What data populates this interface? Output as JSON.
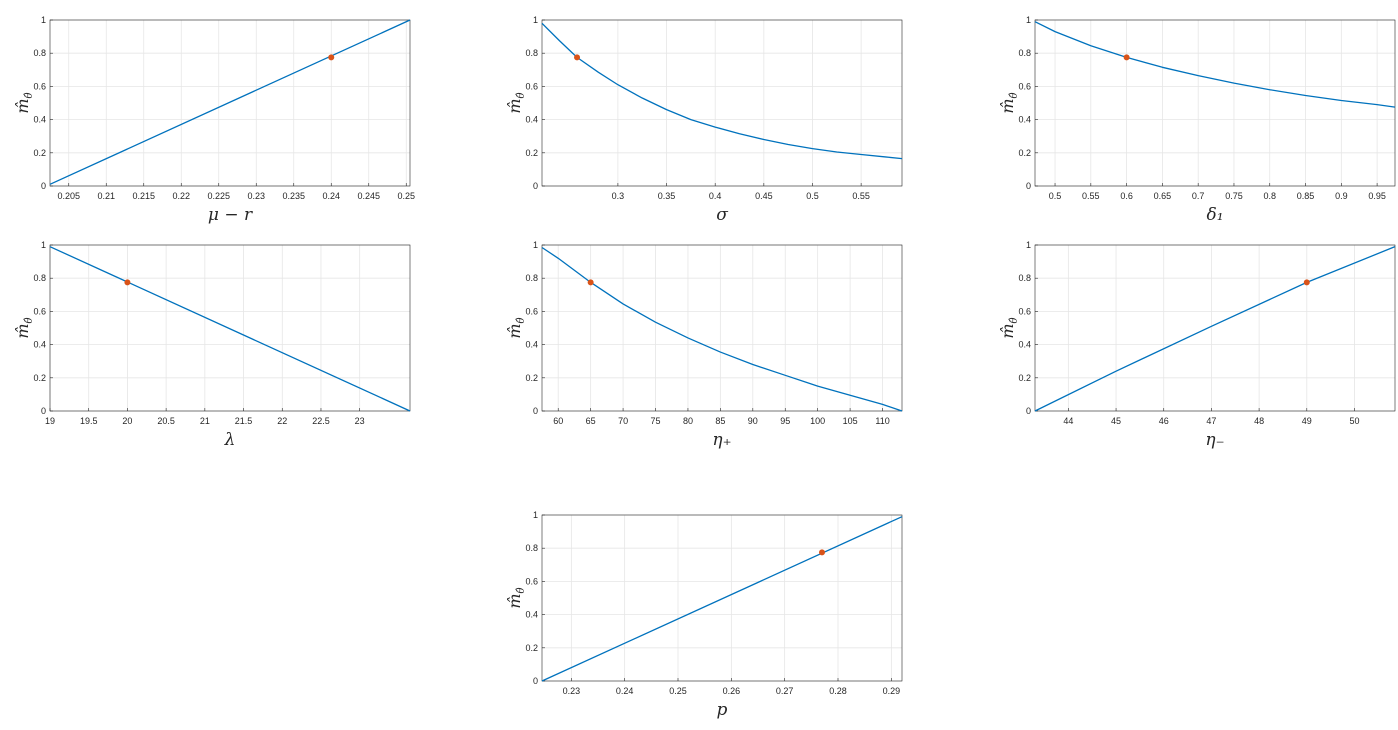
{
  "figure": {
    "ylabel_main": "m̂",
    "ylabel_sub": "θ̂",
    "line_color": "#0072BD",
    "marker_color": "#D95319",
    "axis_color": "#262626",
    "grid_color": "#e6e6e6"
  },
  "chart_data": [
    {
      "type": "line",
      "xlabel": "μ − r",
      "xlim": [
        0.2025,
        0.2505
      ],
      "ylim": [
        0,
        1
      ],
      "xticks": [
        0.205,
        0.21,
        0.215,
        0.22,
        0.225,
        0.23,
        0.235,
        0.24,
        0.245,
        0.25
      ],
      "xticklabels": [
        "0.205",
        "0.21",
        "0.215",
        "0.22",
        "0.225",
        "0.23",
        "0.235",
        "0.24",
        "0.245",
        "0.25"
      ],
      "yticks": [
        0,
        0.2,
        0.4,
        0.6,
        0.8,
        1
      ],
      "yticklabels": [
        "0",
        "0.2",
        "0.4",
        "0.6",
        "0.8",
        "1"
      ],
      "x": [
        0.2025,
        0.2505
      ],
      "y": [
        0.01,
        1.0
      ],
      "marker": {
        "x": 0.24,
        "y": 0.775
      }
    },
    {
      "type": "line",
      "xlabel": "σ",
      "xlim": [
        0.222,
        0.592
      ],
      "ylim": [
        0,
        1
      ],
      "xticks": [
        0.3,
        0.35,
        0.4,
        0.45,
        0.5,
        0.55
      ],
      "xticklabels": [
        "0.3",
        "0.35",
        "0.4",
        "0.45",
        "0.5",
        "0.55"
      ],
      "yticks": [
        0,
        0.2,
        0.4,
        0.6,
        0.8,
        1
      ],
      "yticklabels": [
        "0",
        "0.2",
        "0.4",
        "0.6",
        "0.8",
        "1"
      ],
      "x": [
        0.222,
        0.24,
        0.258,
        0.28,
        0.3,
        0.325,
        0.35,
        0.375,
        0.4,
        0.425,
        0.45,
        0.475,
        0.5,
        0.525,
        0.55,
        0.575,
        0.592
      ],
      "y": [
        0.98,
        0.875,
        0.775,
        0.685,
        0.61,
        0.53,
        0.46,
        0.4,
        0.355,
        0.315,
        0.28,
        0.25,
        0.225,
        0.205,
        0.19,
        0.175,
        0.165
      ],
      "marker": {
        "x": 0.258,
        "y": 0.775
      }
    },
    {
      "type": "line",
      "xlabel": "δ₁",
      "xlim": [
        0.472,
        0.975
      ],
      "ylim": [
        0,
        1
      ],
      "xticks": [
        0.5,
        0.55,
        0.6,
        0.65,
        0.7,
        0.75,
        0.8,
        0.85,
        0.9,
        0.95
      ],
      "xticklabels": [
        "0.5",
        "0.55",
        "0.6",
        "0.65",
        "0.7",
        "0.75",
        "0.8",
        "0.85",
        "0.9",
        "0.95"
      ],
      "yticks": [
        0,
        0.2,
        0.4,
        0.6,
        0.8,
        1
      ],
      "yticklabels": [
        "0",
        "0.2",
        "0.4",
        "0.6",
        "0.8",
        "1"
      ],
      "x": [
        0.472,
        0.5,
        0.55,
        0.6,
        0.65,
        0.7,
        0.75,
        0.8,
        0.85,
        0.9,
        0.95,
        0.975
      ],
      "y": [
        0.99,
        0.93,
        0.845,
        0.775,
        0.715,
        0.665,
        0.62,
        0.58,
        0.545,
        0.515,
        0.49,
        0.475
      ],
      "marker": {
        "x": 0.6,
        "y": 0.775
      }
    },
    {
      "type": "line",
      "xlabel": "λ",
      "xlim": [
        19,
        23.65
      ],
      "ylim": [
        0,
        1
      ],
      "xticks": [
        19,
        19.5,
        20,
        20.5,
        21,
        21.5,
        22,
        22.5,
        23
      ],
      "xticklabels": [
        "19",
        "19.5",
        "20",
        "20.5",
        "21",
        "21.5",
        "22",
        "22.5",
        "23"
      ],
      "yticks": [
        0,
        0.2,
        0.4,
        0.6,
        0.8,
        1
      ],
      "yticklabels": [
        "0",
        "0.2",
        "0.4",
        "0.6",
        "0.8",
        "1"
      ],
      "x": [
        19,
        23.65
      ],
      "y": [
        0.99,
        0.0
      ],
      "marker": {
        "x": 20,
        "y": 0.775
      }
    },
    {
      "type": "line",
      "xlabel": "η₊",
      "xlim": [
        57.5,
        113
      ],
      "ylim": [
        0,
        1
      ],
      "xticks": [
        60,
        65,
        70,
        75,
        80,
        85,
        90,
        95,
        100,
        105,
        110
      ],
      "xticklabels": [
        "60",
        "65",
        "70",
        "75",
        "80",
        "85",
        "90",
        "95",
        "100",
        "105",
        "110"
      ],
      "yticks": [
        0,
        0.2,
        0.4,
        0.6,
        0.8,
        1
      ],
      "yticklabels": [
        "0",
        "0.2",
        "0.4",
        "0.6",
        "0.8",
        "1"
      ],
      "x": [
        57.5,
        60,
        65,
        70,
        75,
        80,
        85,
        90,
        95,
        100,
        105,
        110,
        113
      ],
      "y": [
        0.985,
        0.92,
        0.775,
        0.645,
        0.535,
        0.44,
        0.355,
        0.28,
        0.215,
        0.15,
        0.095,
        0.04,
        0.0
      ],
      "marker": {
        "x": 65,
        "y": 0.775
      }
    },
    {
      "type": "line",
      "xlabel": "η₋",
      "xlim": [
        43.3,
        50.85
      ],
      "ylim": [
        0,
        1
      ],
      "xticks": [
        44,
        45,
        46,
        47,
        48,
        49,
        50
      ],
      "xticklabels": [
        "44",
        "45",
        "46",
        "47",
        "48",
        "49",
        "50"
      ],
      "yticks": [
        0,
        0.2,
        0.4,
        0.6,
        0.8,
        1
      ],
      "yticklabels": [
        "0",
        "0.2",
        "0.4",
        "0.6",
        "0.8",
        "1"
      ],
      "x": [
        43.3,
        45,
        47,
        49,
        50.85
      ],
      "y": [
        0.0,
        0.24,
        0.51,
        0.775,
        0.99
      ],
      "marker": {
        "x": 49,
        "y": 0.775
      }
    },
    {
      "type": "line",
      "xlabel": "p",
      "xlim": [
        0.2245,
        0.292
      ],
      "ylim": [
        0,
        1
      ],
      "xticks": [
        0.23,
        0.24,
        0.25,
        0.26,
        0.27,
        0.28,
        0.29
      ],
      "xticklabels": [
        "0.23",
        "0.24",
        "0.25",
        "0.26",
        "0.27",
        "0.28",
        "0.29"
      ],
      "yticks": [
        0,
        0.2,
        0.4,
        0.6,
        0.8,
        1
      ],
      "yticklabels": [
        "0",
        "0.2",
        "0.4",
        "0.6",
        "0.8",
        "1"
      ],
      "x": [
        0.2245,
        0.292
      ],
      "y": [
        0.0,
        0.99
      ],
      "marker": {
        "x": 0.277,
        "y": 0.775
      }
    }
  ]
}
